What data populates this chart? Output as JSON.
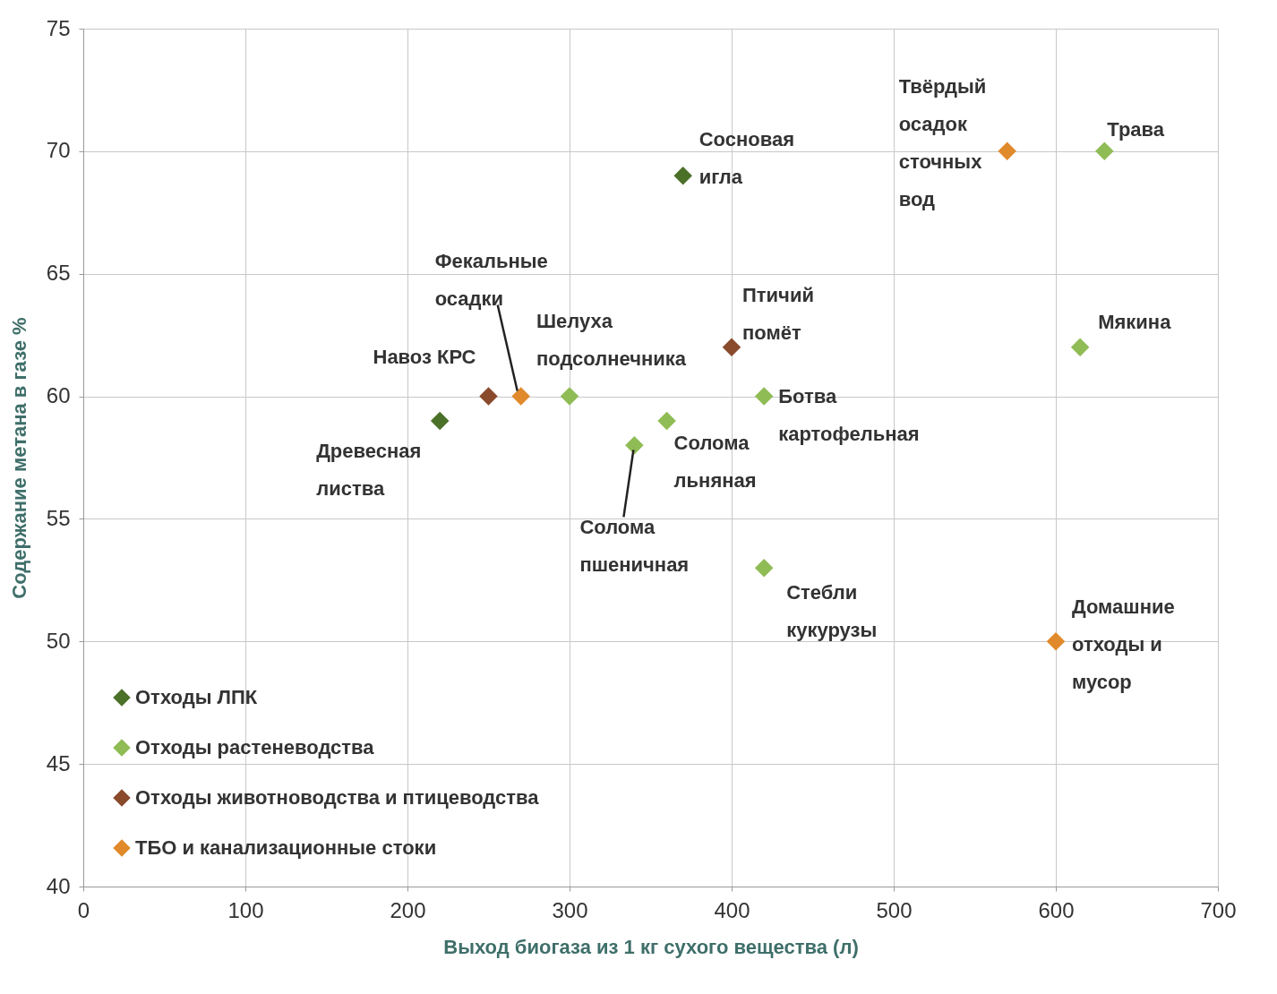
{
  "chart_data": {
    "type": "scatter",
    "xlabel": "Выход биогаза из 1 кг сухого вещества (л)",
    "ylabel": "Содержание метана в газе %",
    "xlim": [
      0,
      700
    ],
    "xticks": [
      0,
      100,
      200,
      300,
      400,
      500,
      600,
      700
    ],
    "ylim": [
      40,
      75
    ],
    "yticks": [
      40,
      45,
      50,
      55,
      60,
      65,
      70,
      75
    ],
    "grid": true,
    "legend": "bottom left",
    "marker": "diamond",
    "series": [
      {
        "name": "Отходы ЛПК",
        "color": "#4b7028",
        "x": [
          220,
          370
        ],
        "values": [
          59,
          69
        ]
      },
      {
        "name": "Отходы растеневодства",
        "color": "#8fbc55",
        "x": [
          300,
          340,
          360,
          420,
          420,
          630,
          615
        ],
        "values": [
          60,
          58,
          59,
          60,
          53,
          70,
          62
        ]
      },
      {
        "name": "Отходы животноводства и птицеводства",
        "color": "#8a4a2c",
        "x": [
          250,
          400
        ],
        "values": [
          60,
          62
        ]
      },
      {
        "name": "ТБО и канализационные стоки",
        "color": "#e08a2c",
        "x": [
          270,
          570,
          600
        ],
        "values": [
          60,
          70,
          50
        ]
      }
    ],
    "annotations": [
      {
        "text": "Древесная\nлиства",
        "x": 220,
        "y": 59
      },
      {
        "text": "Сосновая\nигла",
        "x": 370,
        "y": 69
      },
      {
        "text": "Шелуха\nподсолнечника",
        "x": 300,
        "y": 60
      },
      {
        "text": "Солома\nпшеничная",
        "x": 340,
        "y": 58
      },
      {
        "text": "Солома\nльняная",
        "x": 360,
        "y": 59
      },
      {
        "text": "Ботва\nкартофельная",
        "x": 420,
        "y": 60
      },
      {
        "text": "Стебли\nкукурузы",
        "x": 420,
        "y": 53
      },
      {
        "text": "Трава",
        "x": 630,
        "y": 70
      },
      {
        "text": "Мякина",
        "x": 615,
        "y": 62
      },
      {
        "text": "Навоз КРС",
        "x": 250,
        "y": 60
      },
      {
        "text": "Птичий\nпомёт",
        "x": 400,
        "y": 62
      },
      {
        "text": "Фекальные\nосадки",
        "x": 270,
        "y": 60
      },
      {
        "text": "Твёрдый\nосадок\nсточных\nвод",
        "x": 570,
        "y": 70
      },
      {
        "text": "Домашние\nотходы и\nмусор",
        "x": 600,
        "y": 50
      }
    ]
  }
}
